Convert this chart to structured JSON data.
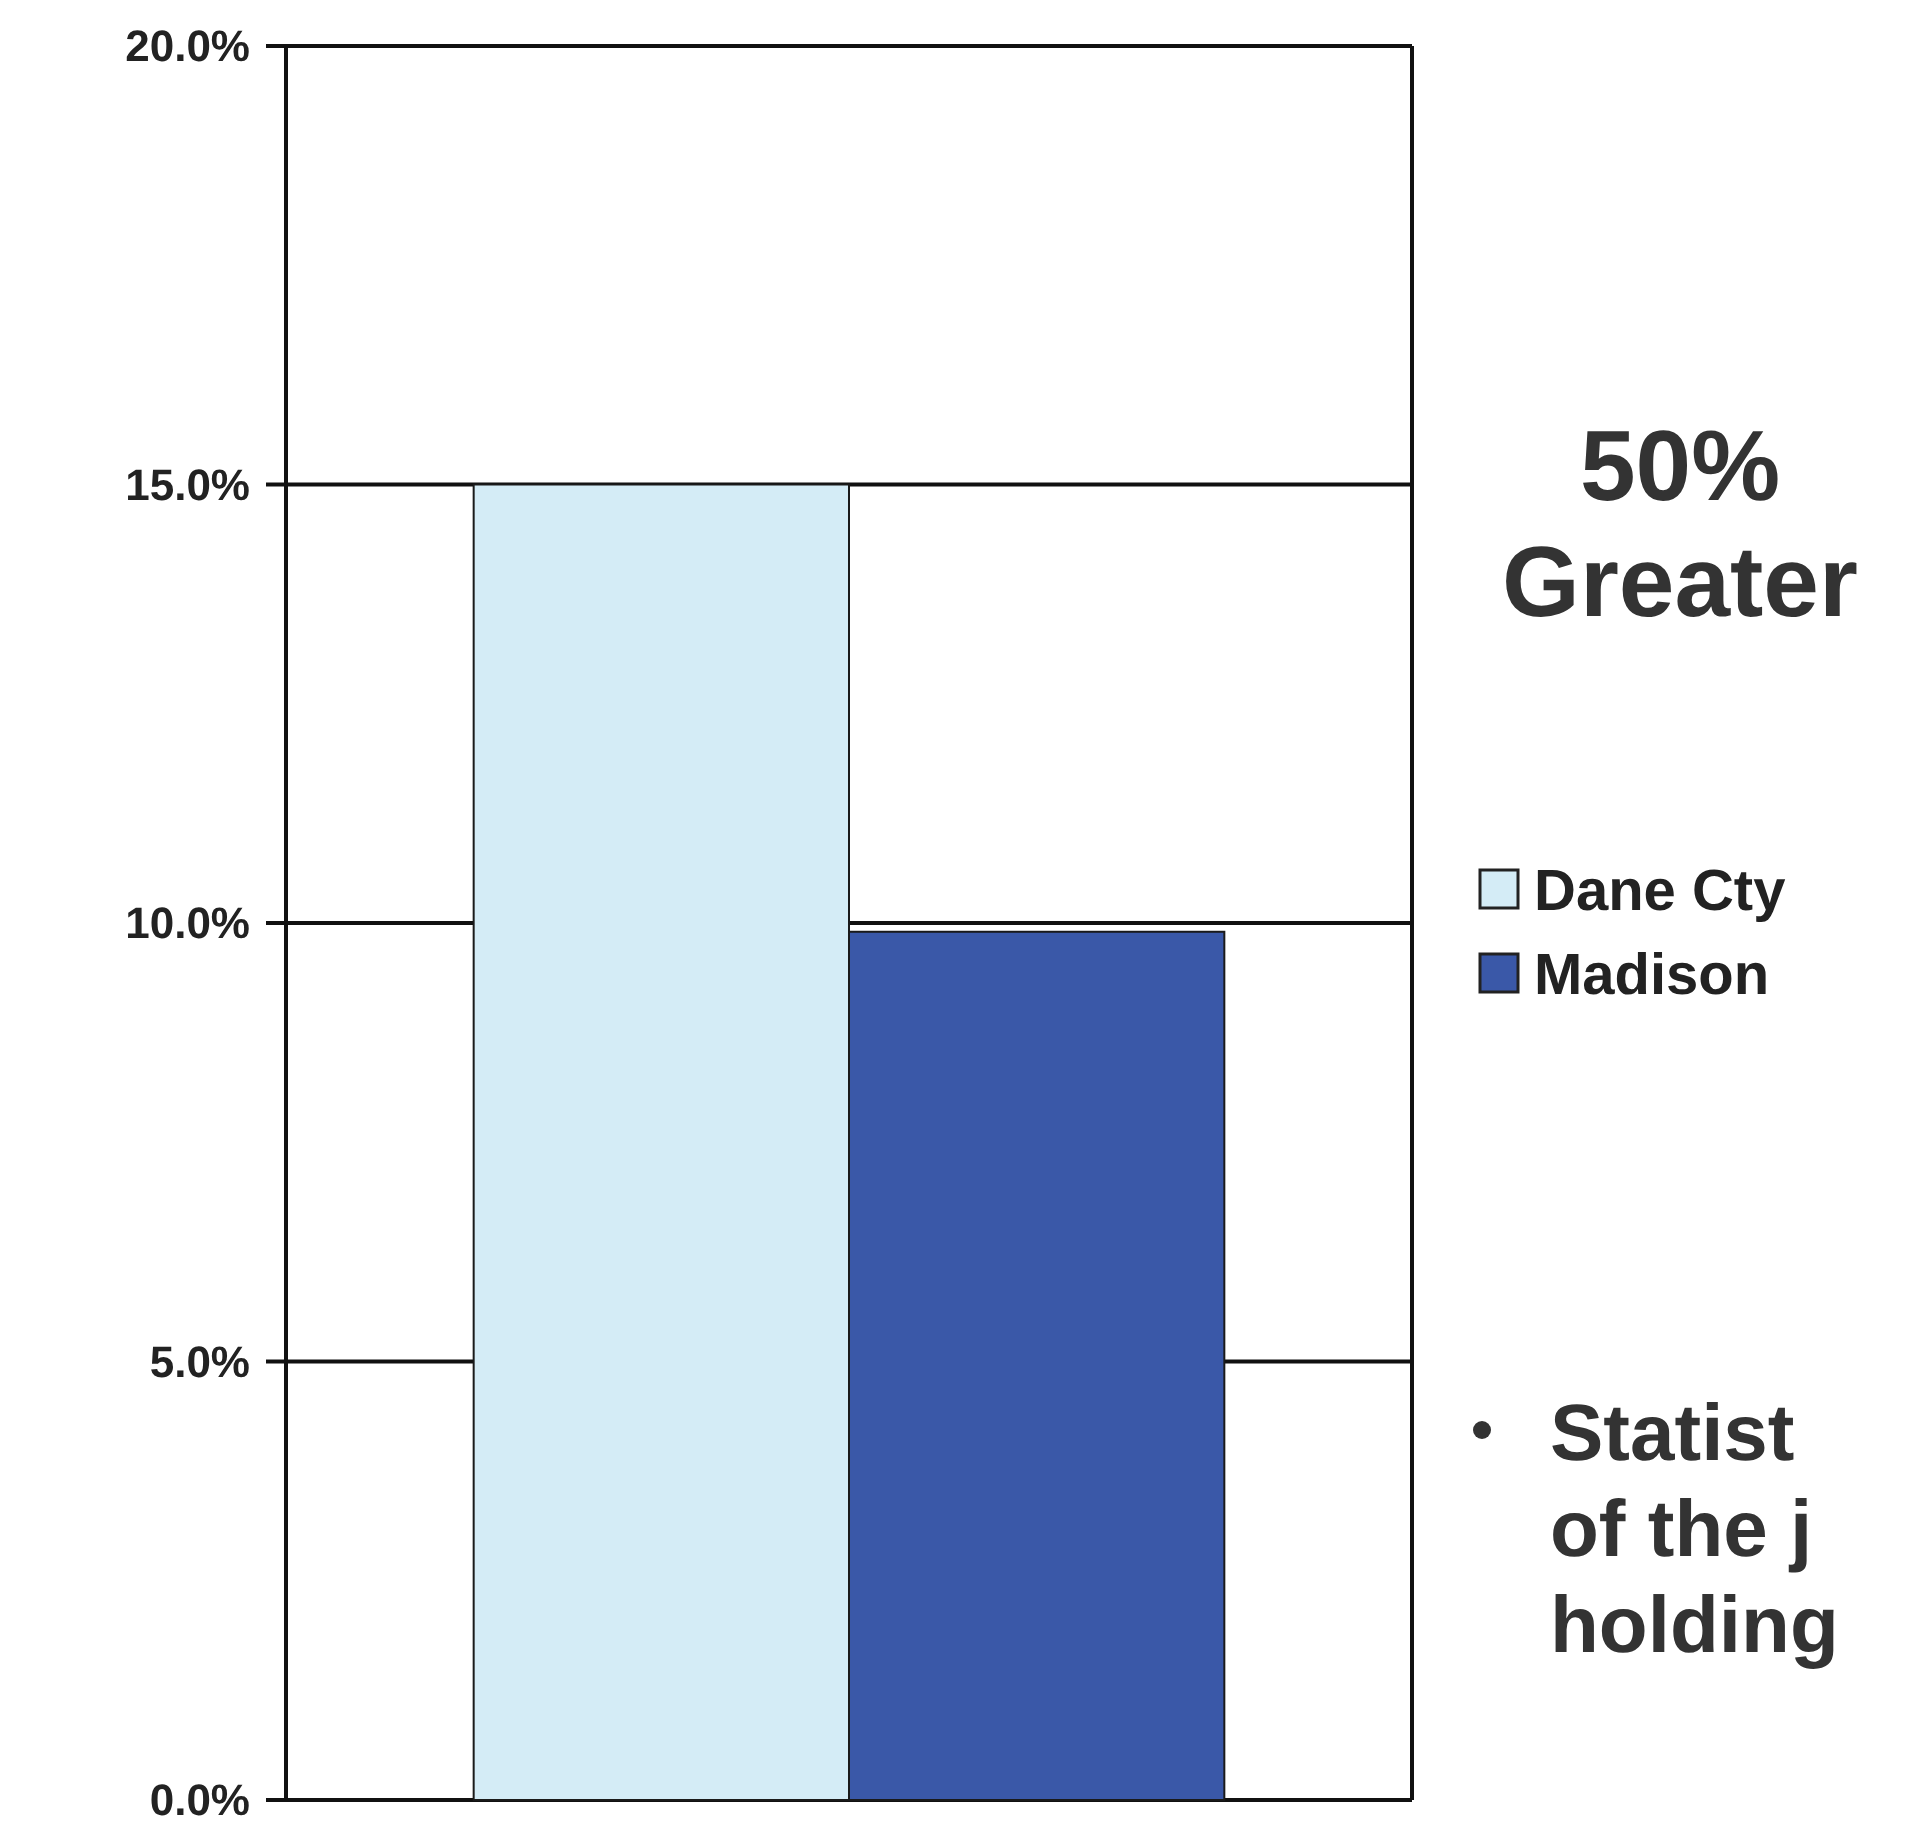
{
  "chart_data": {
    "type": "bar",
    "categories": [
      null
    ],
    "series": [
      {
        "name": "Dane Cty",
        "color": "#d4ecf6",
        "values": [
          15.0
        ]
      },
      {
        "name": "Madison",
        "color": "#3a58a8",
        "values": [
          9.9
        ]
      }
    ],
    "ylim": [
      0,
      20
    ],
    "yticks": [
      {
        "value": 0,
        "label": "0.0%"
      },
      {
        "value": 5,
        "label": "5.0%"
      },
      {
        "value": 10,
        "label": "10.0%"
      },
      {
        "value": 15,
        "label": "15.0%"
      },
      {
        "value": 20,
        "label": "20.0%"
      }
    ],
    "grid": "y",
    "legend": "right",
    "annotations": [
      "50%\nGreater",
      "Statist\nof the j\nholding"
    ]
  }
}
